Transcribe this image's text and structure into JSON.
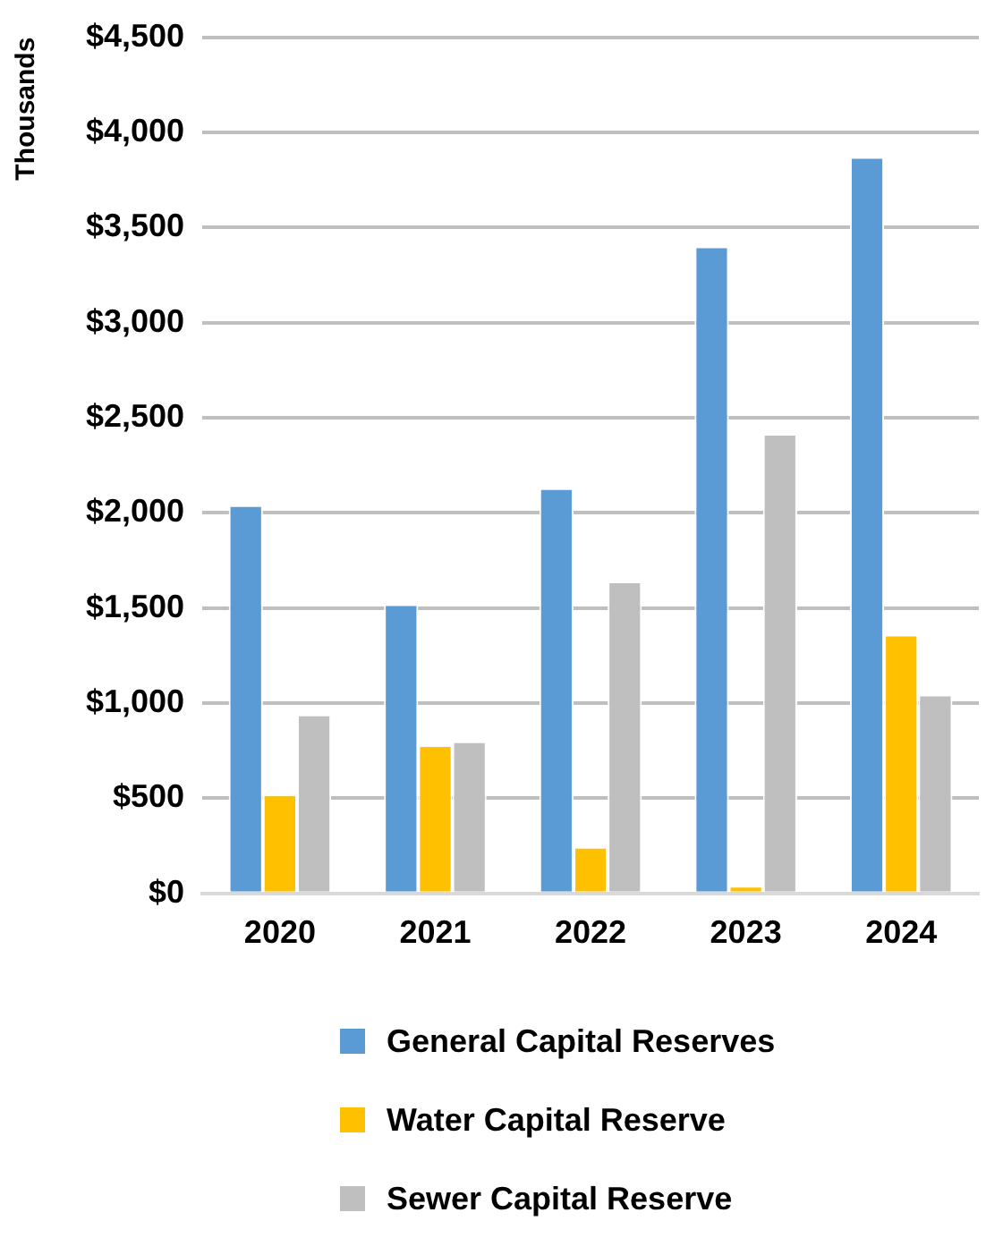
{
  "chart_data": {
    "type": "bar",
    "ylabel": "Thousands",
    "categories": [
      "2020",
      "2021",
      "2022",
      "2023",
      "2024"
    ],
    "series": [
      {
        "name": "General Capital Reserves",
        "color": "#5b9bd5",
        "values": [
          2040,
          1520,
          2130,
          3400,
          3870
        ]
      },
      {
        "name": "Water Capital Reserve",
        "color": "#ffc000",
        "values": [
          520,
          780,
          245,
          40,
          1360
        ]
      },
      {
        "name": "Sewer Capital Reserve",
        "color": "#bfbfbf",
        "values": [
          940,
          800,
          1640,
          2415,
          1045
        ]
      }
    ],
    "ylim": [
      0,
      4500
    ],
    "yticks": [
      {
        "value": 0,
        "label": "$0"
      },
      {
        "value": 500,
        "label": "$500"
      },
      {
        "value": 1000,
        "label": "$1,000"
      },
      {
        "value": 1500,
        "label": "$1,500"
      },
      {
        "value": 2000,
        "label": "$2,000"
      },
      {
        "value": 2500,
        "label": "$2,500"
      },
      {
        "value": 3000,
        "label": "$3,000"
      },
      {
        "value": 3500,
        "label": "$3,500"
      },
      {
        "value": 4000,
        "label": "$4,000"
      },
      {
        "value": 4500,
        "label": "$4,500"
      }
    ],
    "grid": "y",
    "legend": "bottom"
  }
}
